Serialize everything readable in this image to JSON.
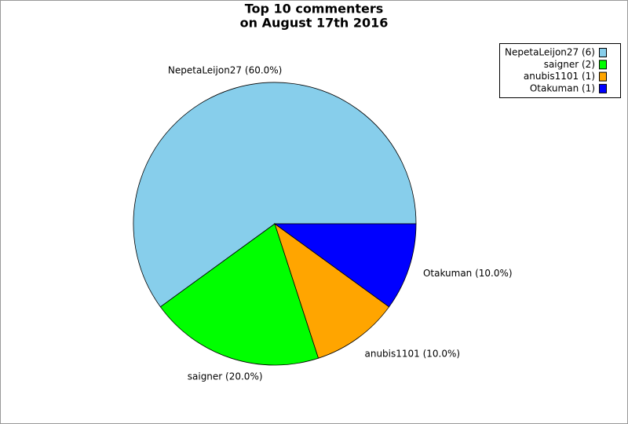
{
  "chart_data": {
    "type": "pie",
    "title": [
      "Top 10 commenters",
      "on August 17th 2016"
    ],
    "values": [
      60,
      20,
      10,
      10
    ],
    "value_labels": [
      "NepetaLeijon27 (60.0%)",
      "saigner (20.0%)",
      "anubis1101 (10.0%)",
      "Otakuman (10.0%)"
    ],
    "legend": [
      "NepetaLeijon27 (6)",
      "saigner (2)",
      "anubis1101 (1)",
      "Otakuman (1)"
    ],
    "colors": [
      "#87ceeb",
      "#00ff00",
      "#ffa500",
      "#0000ff"
    ]
  }
}
